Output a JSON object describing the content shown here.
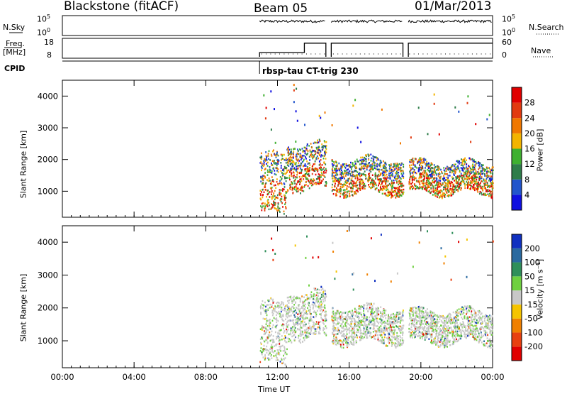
{
  "header": {
    "station": "Blackstone (fitACF)",
    "beam": "Beam 05",
    "date": "01/Mar/2013"
  },
  "left_labels": {
    "nsky": "N.Sky",
    "freq_line1": "Freq.",
    "freq_line2": "[MHz]",
    "cpid": "CPID"
  },
  "right_labels": {
    "nsearch": "N.Search",
    "nave": "Nave"
  },
  "small_panels": {
    "nsky_ticks": [
      "10^5",
      "10^0"
    ],
    "nsearch_ticks": [
      "10^5",
      "10^0"
    ],
    "freq_ticks": [
      "18",
      "8"
    ],
    "nave_ticks": [
      "60",
      "0"
    ],
    "cpid_text": "rbsp-tau CT-trig 230"
  },
  "chart_data": [
    {
      "type": "heatmap",
      "panel": "power",
      "ylabel": "Slant Range [km]",
      "xlabel": "",
      "xlim": [
        0,
        24
      ],
      "ylim": [
        180,
        4500
      ],
      "x_tick_labels": [
        "00:00",
        "04:00",
        "08:00",
        "12:00",
        "16:00",
        "20:00",
        "00:00"
      ],
      "y_ticks": [
        1000,
        2000,
        3000,
        4000
      ],
      "colorbar_label": "Power [dB]",
      "colorbar_ticks": [
        "4",
        "8",
        "12",
        "16",
        "20",
        "24",
        "28"
      ],
      "colorbar_colors": [
        "#1010e0",
        "#2255cc",
        "#2f7d4a",
        "#3fb030",
        "#f3b400",
        "#f07800",
        "#e23a10",
        "#e00000"
      ],
      "data_start_ut": 11.0,
      "data_gaps_ut": [
        [
          14.7,
          15.0
        ],
        [
          19.0,
          19.3
        ]
      ],
      "scatter_regions": [
        {
          "start_ut": 11.0,
          "end_ut": 12.5,
          "range_km": [
            200,
            2300
          ],
          "power_db": [
            4,
            20
          ]
        },
        {
          "start_ut": 12.5,
          "end_ut": 14.7,
          "range_km": [
            1000,
            2600
          ],
          "power_db": [
            4,
            22
          ]
        },
        {
          "start_ut": 15.0,
          "end_ut": 19.0,
          "range_km": [
            900,
            2100
          ],
          "power_db": [
            4,
            28
          ]
        },
        {
          "start_ut": 19.3,
          "end_ut": 24.0,
          "range_km": [
            900,
            2000
          ],
          "power_db": [
            4,
            24
          ]
        }
      ]
    },
    {
      "type": "heatmap",
      "panel": "velocity",
      "ylabel": "Slant Range [km]",
      "xlabel": "Time UT",
      "xlim": [
        0,
        24
      ],
      "ylim": [
        180,
        4500
      ],
      "x_tick_labels": [
        "00:00",
        "04:00",
        "08:00",
        "12:00",
        "16:00",
        "20:00",
        "00:00"
      ],
      "y_ticks": [
        1000,
        2000,
        3000,
        4000
      ],
      "colorbar_label": "Velocity [m s⁻¹]",
      "colorbar_ticks": [
        "200",
        "100",
        "50",
        "15",
        "-15",
        "-50",
        "-100",
        "-200"
      ],
      "colorbar_colors": [
        "#1030c0",
        "#2a6aa0",
        "#2f8f5a",
        "#6fd040",
        "#c8c8c8",
        "#f5c400",
        "#f08000",
        "#e84010",
        "#e00000"
      ],
      "data_start_ut": 11.0,
      "data_gaps_ut": [
        [
          14.7,
          15.0
        ],
        [
          19.0,
          19.3
        ]
      ],
      "scatter_regions": [
        {
          "start_ut": 11.0,
          "end_ut": 12.5,
          "range_km": [
            200,
            2300
          ],
          "velocity_ms": [
            -50,
            100
          ]
        },
        {
          "start_ut": 12.5,
          "end_ut": 14.7,
          "range_km": [
            1000,
            2600
          ],
          "velocity_ms": [
            -15,
            50
          ]
        },
        {
          "start_ut": 15.0,
          "end_ut": 19.0,
          "range_km": [
            900,
            2100
          ],
          "velocity_ms": [
            -15,
            15
          ]
        },
        {
          "start_ut": 19.3,
          "end_ut": 24.0,
          "range_km": [
            900,
            2000
          ],
          "velocity_ms": [
            -15,
            15
          ]
        }
      ]
    }
  ]
}
